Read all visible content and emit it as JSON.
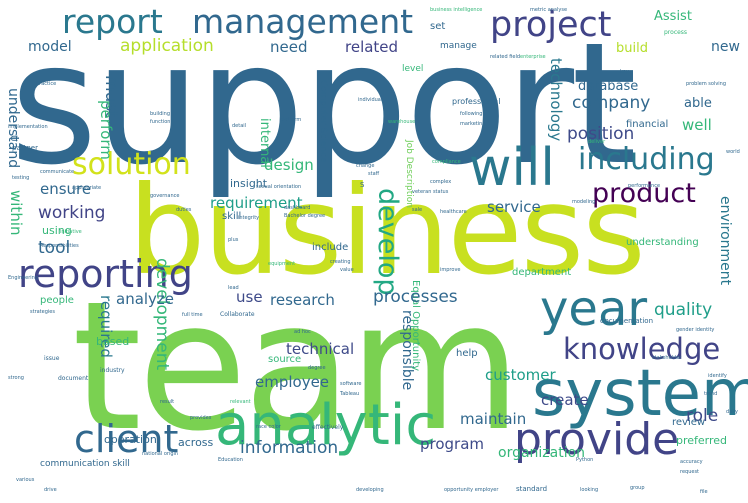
{
  "palette": {
    "dark_purple": "#440154",
    "purple": "#482878",
    "indigo": "#3e4a89",
    "blue": "#31688e",
    "teal": "#26828e",
    "sea_green": "#1f9e89",
    "green": "#35b779",
    "lime": "#6ece58",
    "light_green": "#b5de2b",
    "yellow": "#d8e219"
  },
  "words": {
    "support": "support",
    "business": "business",
    "team": "team",
    "system": "system",
    "analytic": "analytic",
    "provide": "provide",
    "client": "client",
    "year": "year",
    "reporting": "reporting",
    "report": "report",
    "management": "management",
    "project": "project",
    "will": "will",
    "solution": "solution",
    "including": "including",
    "product": "product",
    "develop": "develop",
    "knowledge": "knowledge",
    "development": "development",
    "information": "information",
    "customer": "customer",
    "application": "application",
    "related": "related",
    "model": "model",
    "need": "need",
    "company": "company",
    "database": "database",
    "position": "position",
    "well": "well",
    "able": "able",
    "new": "new",
    "assist": "Assist",
    "must": "must",
    "perform": "perform",
    "understand": "understand",
    "technology": "technology",
    "requirement": "requirement",
    "design": "design",
    "internal": "internal",
    "ensure": "ensure",
    "working": "working",
    "within": "within",
    "tool": "tool",
    "analyze": "analyze",
    "research": "research",
    "use": "use",
    "processes": "processes",
    "quality": "quality",
    "technical": "technical",
    "employee": "employee",
    "required": "required",
    "service": "service",
    "environment": "environment",
    "responsible": "responsible",
    "role": "role",
    "create": "create",
    "maintain": "maintain",
    "program": "program",
    "organization": "organization",
    "review": "review",
    "preferred": "preferred",
    "operation": "operation",
    "across": "across",
    "build": "build",
    "set": "set",
    "manage": "manage",
    "level": "level",
    "financial": "financial",
    "equal_opportunity": "Equal Opportunity",
    "department": "department",
    "include": "include",
    "source": "source",
    "help": "help",
    "insight": "insight",
    "skill": "skill",
    "using": "using",
    "based": "based",
    "people": "people",
    "communication_skill": "communication skill",
    "job_description": "Job Description",
    "computer_science": "Computer Science",
    "professional": "professional",
    "documentation": "documentation",
    "understanding": "understanding",
    "national_origin": "national origin",
    "gender_identity": "gender identity",
    "business_intelligence": "business intelligence",
    "metric_analyse": "metric analyse",
    "sexual_orientation": "sexual orientation",
    "bachelor_degree": "Bachelor degree",
    "communicate": "communicate",
    "veteran_status": "veteran status",
    "collaborate": "Collaborate",
    "dashboard": "dashboard",
    "full_time": "full time",
    "race_color": "race color",
    "effectively": "effectively",
    "software": "software",
    "tableau": "Tableau",
    "healthcare": "healthcare",
    "compliance": "compliance",
    "platform": "platform",
    "warehouse": "warehouse",
    "implementation": "implementation",
    "practice": "practice",
    "partner": "partner",
    "governance": "governance",
    "integrity": "integrity",
    "marketing": "marketing",
    "following": "following",
    "process": "process",
    "accuracy": "accuracy",
    "education": "Education",
    "python": "Python",
    "developing": "developing",
    "opportunity_employer": "opportunity employer",
    "standard": "standard",
    "issue": "issue",
    "document": "document",
    "industry": "industry",
    "strategies": "strategies",
    "engineering": "Engineering",
    "responsibilities": "Responsibilities",
    "plus": "plus",
    "drive": "drive",
    "various": "various",
    "improve": "improve",
    "modeling": "modeling",
    "change": "change",
    "complex": "complex",
    "performance": "performance",
    "stakeholder": "stakeholder",
    "identify": "identify",
    "request": "request",
    "detail": "detail",
    "ad_hoc": "ad hoc",
    "key": "key",
    "staff": "staff",
    "deliver": "deliver",
    "trend": "trend",
    "world": "world",
    "daily": "daily",
    "duties": "duties",
    "looking": "looking",
    "group": "group",
    "value": "value",
    "creating": "creating",
    "equipment": "equipment",
    "sale": "sale",
    "lead": "lead",
    "result": "result",
    "strong": "strong",
    "file": "file",
    "building": "building",
    "function": "function",
    "related_field": "related field",
    "problem_solving": "problem solving",
    "enterprise": "enterprise",
    "individual": "individual",
    "appropriate": "appropriate",
    "testing": "testing",
    "provides": "provides",
    "initiative": "initiative",
    "relevant": "relevant",
    "degree": "degree",
    "u": "U",
    "s": "S"
  }
}
